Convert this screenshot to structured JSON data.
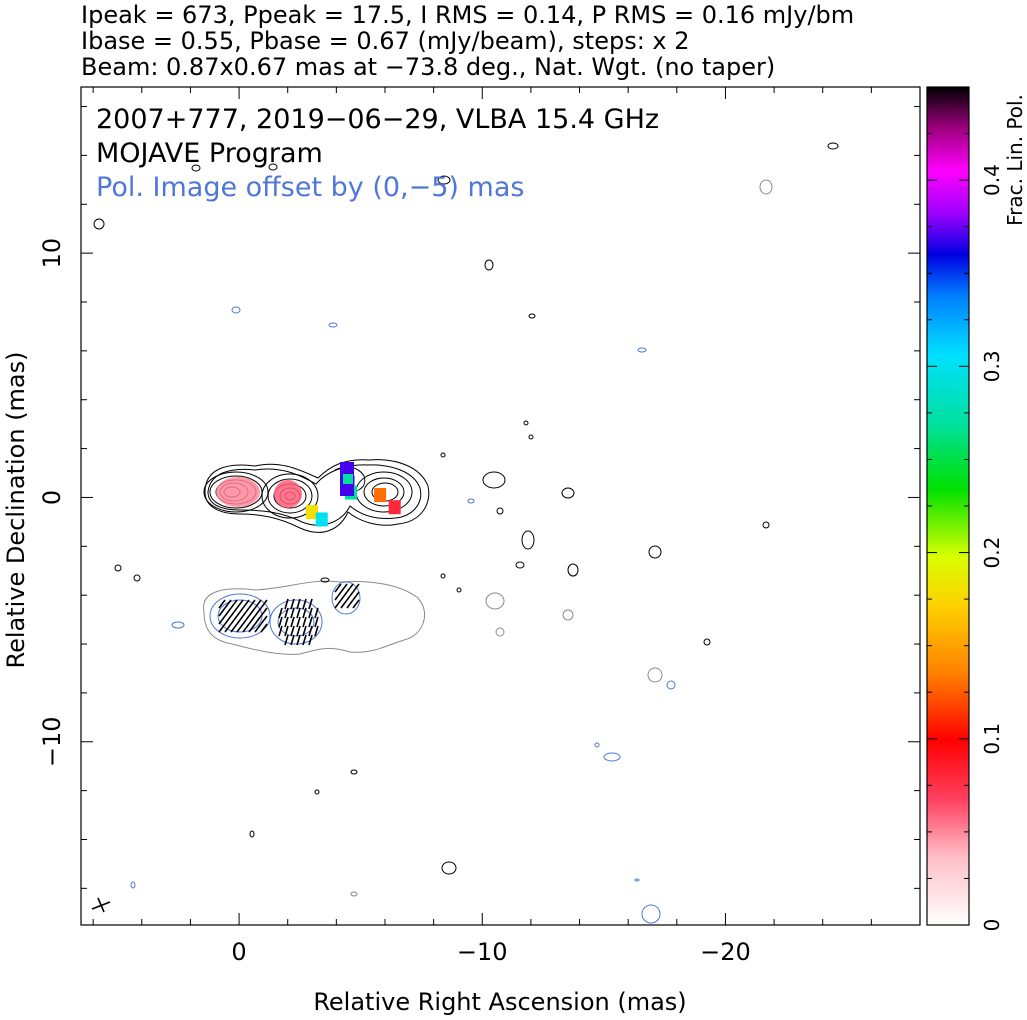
{
  "header": {
    "line1": "Ipeak = 673, Ppeak = 17.5, I RMS = 0.14, P RMS = 0.16 mJy/bm",
    "line2": "Ibase = 0.55, Pbase = 0.67 (mJy/beam), steps: x 2",
    "line3": "Beam: 0.87x0.67 mas at −73.8 deg., Nat. Wgt. (no taper)"
  },
  "chart_data": {
    "type": "heatmap",
    "title": "2007+777, 2019−06−29, VLBA 15.4 GHz",
    "subtitle": "MOJAVE Program",
    "annotation": "Pol. Image offset by (0,−5) mas",
    "annotation_color": "#4f77d6",
    "xlabel": "Relative Right Ascension (mas)",
    "ylabel": "Relative Declination (mas)",
    "xlim": [
      6.5,
      -28
    ],
    "ylim": [
      -17.5,
      16.8
    ],
    "xticks": [
      0,
      -10,
      -20
    ],
    "xtick_labels": [
      "0",
      "−10",
      "−20"
    ],
    "yticks": [
      10,
      0,
      -10
    ],
    "ytick_labels": [
      "10",
      "0",
      "−10"
    ],
    "colorbar": {
      "label": "Frac. Lin. Pol.",
      "range": [
        0,
        0.45
      ],
      "ticks": [
        0,
        0.1,
        0.2,
        0.3,
        0.4
      ],
      "tick_labels": [
        "0",
        "0.1",
        "0.2",
        "0.3",
        "0.4"
      ]
    },
    "stokes_i": {
      "peak_mJy_per_beam": 673,
      "base_mJy_per_beam": 0.55,
      "contour_step_factor": 2,
      "components": [
        {
          "x": 0.3,
          "y": 0.0
        },
        {
          "x": -2.1,
          "y": -0.2
        },
        {
          "x": -6.2,
          "y": 0.0
        }
      ]
    },
    "fractional_polarization_patches": [
      {
        "x": 0.2,
        "y": 0.0,
        "value": 0.05
      },
      {
        "x": -2.1,
        "y": -0.2,
        "value": 0.06
      },
      {
        "x": -3.0,
        "y": -0.6,
        "value": 0.18
      },
      {
        "x": -3.4,
        "y": -0.9,
        "value": 0.3
      },
      {
        "x": -4.5,
        "y": 0.6,
        "value": 0.37
      },
      {
        "x": -4.6,
        "y": 0.2,
        "value": 0.27
      },
      {
        "x": -5.8,
        "y": 0.1,
        "value": 0.13
      },
      {
        "x": -6.4,
        "y": -0.4,
        "value": 0.08
      }
    ],
    "polarized_intensity_offset_mas": [
      0,
      -5
    ],
    "polarized_intensity": {
      "peak_mJy_per_beam": 17.5,
      "base_mJy_per_beam": 0.67
    },
    "beam": {
      "major_mas": 0.87,
      "minor_mas": 0.67,
      "pa_deg": -73.8
    }
  }
}
